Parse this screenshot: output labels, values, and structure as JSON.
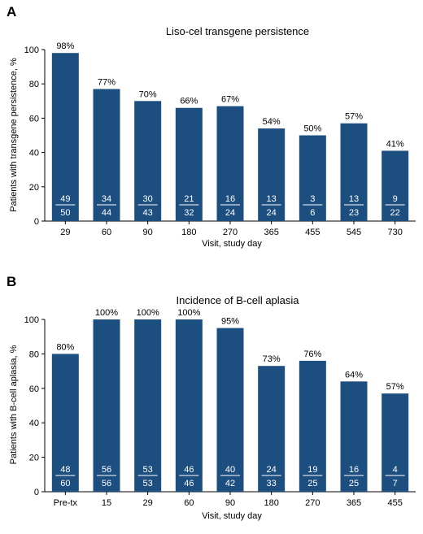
{
  "colors": {
    "bar": "#1c4e80",
    "axis": "#000000",
    "fraction_text": "#ffffff"
  },
  "chart_data": [
    {
      "type": "bar",
      "panel_letter": "A",
      "title": "Liso-cel transgene persistence",
      "xlabel": "Visit, study day",
      "ylabel": "Patients with transgene persistence, %",
      "ylim": [
        0,
        100
      ],
      "yticks": [
        "0",
        "20",
        "40",
        "60",
        "80",
        "100"
      ],
      "grid": false,
      "categories": [
        "29",
        "60",
        "90",
        "180",
        "270",
        "365",
        "455",
        "545",
        "730"
      ],
      "values": [
        98,
        77,
        70,
        66,
        67,
        54,
        50,
        57,
        41
      ],
      "value_labels": [
        "98%",
        "77%",
        "70%",
        "66%",
        "67%",
        "54%",
        "50%",
        "57%",
        "41%"
      ],
      "numerators": [
        "49",
        "34",
        "30",
        "21",
        "16",
        "13",
        "3",
        "13",
        "9"
      ],
      "denominators": [
        "50",
        "44",
        "43",
        "32",
        "24",
        "24",
        "6",
        "23",
        "22"
      ]
    },
    {
      "type": "bar",
      "panel_letter": "B",
      "title": "Incidence of B-cell aplasia",
      "xlabel": "Visit, study day",
      "ylabel": "Patients with B-cell aplasia, %",
      "ylim": [
        0,
        100
      ],
      "yticks": [
        "0",
        "20",
        "40",
        "60",
        "80",
        "100"
      ],
      "grid": false,
      "categories": [
        "Pre-tx",
        "15",
        "29",
        "60",
        "90",
        "180",
        "270",
        "365",
        "455"
      ],
      "values": [
        80,
        100,
        100,
        100,
        95,
        73,
        76,
        64,
        57
      ],
      "value_labels": [
        "80%",
        "100%",
        "100%",
        "100%",
        "95%",
        "73%",
        "76%",
        "64%",
        "57%"
      ],
      "numerators": [
        "48",
        "56",
        "53",
        "46",
        "40",
        "24",
        "19",
        "16",
        "4"
      ],
      "denominators": [
        "60",
        "56",
        "53",
        "46",
        "42",
        "33",
        "25",
        "25",
        "7"
      ]
    }
  ]
}
